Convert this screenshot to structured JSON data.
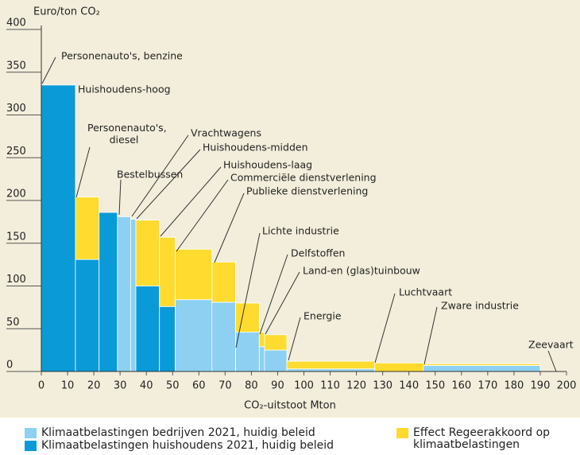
{
  "chart_data": {
    "type": "bar",
    "y_axis_label": "Euro/ton CO₂",
    "x_axis_label": "CO₂-uitstoot Mton",
    "categories": [
      "Personenauto's, benzine",
      "Huishoudens-hoog",
      "Personenauto's, diesel",
      "Bestelbussen",
      "Vrachtwagens",
      "Huishoudens-midden",
      "Huishoudens-laag",
      "Commerciële dienstverlening",
      "Publieke dienstverlening",
      "Lichte industrie",
      "Delfstoffen",
      "Land-en (glas)tuinbouw",
      "Energie",
      "Luchtvaart",
      "Zware industrie",
      "Zeevaart"
    ],
    "bins": [
      0,
      13,
      22,
      29,
      34,
      36,
      45,
      51,
      65,
      74,
      83,
      85,
      93.5,
      127,
      145.5,
      190,
      200
    ],
    "series": [
      {
        "name": "Klimaatbelastingen bedrijven 2021, huidig beleid",
        "color": "#8dd0f2",
        "values": [
          null,
          null,
          null,
          181,
          178,
          null,
          null,
          84,
          81,
          46,
          29,
          25,
          3,
          0,
          7,
          0
        ]
      },
      {
        "name": "Klimaatbelastingen huishoudens 2021, huidig beleid",
        "color": "#0a9ad8",
        "values": [
          335,
          131,
          186,
          null,
          null,
          100,
          76,
          null,
          null,
          null,
          null,
          null,
          null,
          null,
          null,
          null
        ]
      },
      {
        "name": "Effect Regeerakkoord op klimaatbelastingen",
        "color": "#fedb2e",
        "values": [
          0,
          73,
          0,
          0,
          0,
          77,
          81,
          59,
          47,
          34,
          17,
          18,
          9,
          10,
          2,
          0
        ]
      }
    ],
    "xlim": [
      0,
      200
    ],
    "xticks": [
      0,
      10,
      20,
      30,
      40,
      50,
      60,
      70,
      80,
      90,
      100,
      110,
      120,
      130,
      140,
      150,
      160,
      170,
      180,
      190,
      200
    ],
    "ylim": [
      0,
      400
    ],
    "yticks": [
      0,
      50,
      100,
      150,
      200,
      250,
      300,
      350,
      400
    ],
    "grid": true
  }
}
